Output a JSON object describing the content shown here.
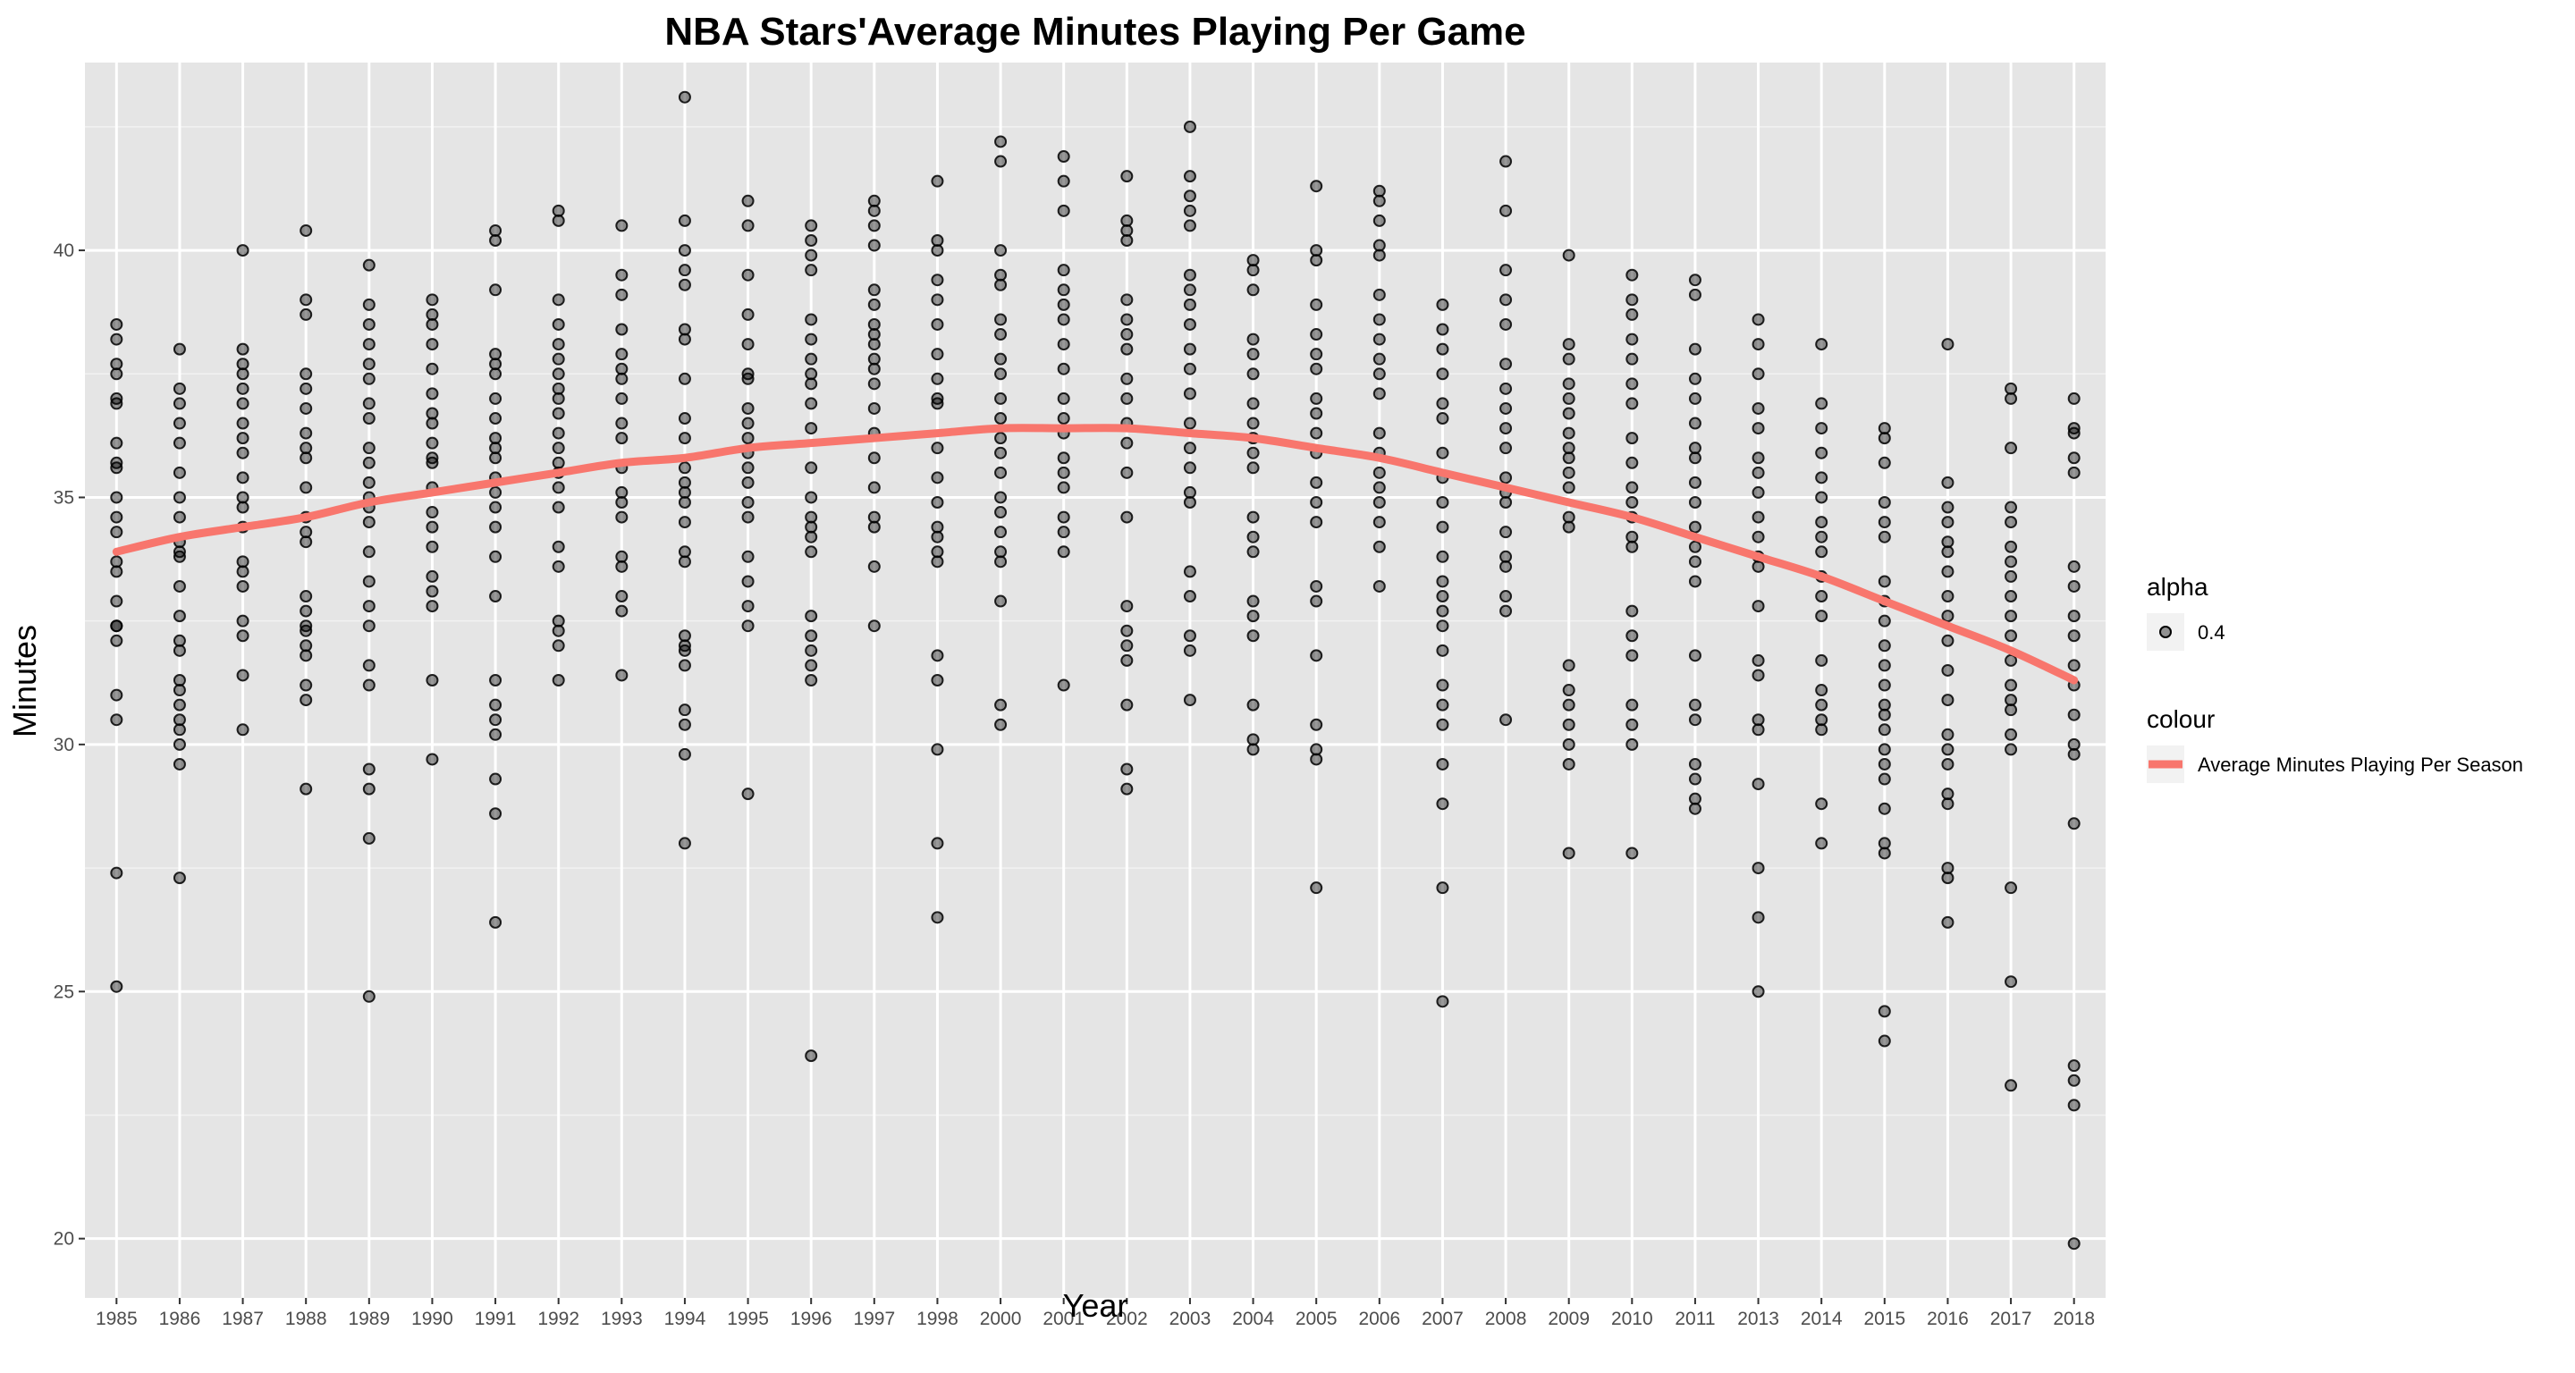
{
  "chart_data": {
    "type": "scatter",
    "title": "NBA Stars'Average Minutes Playing Per Game",
    "xlabel": "Year",
    "ylabel": "Minutes",
    "categories": [
      "1985",
      "1986",
      "1987",
      "1988",
      "1989",
      "1990",
      "1991",
      "1992",
      "1993",
      "1994",
      "1995",
      "1996",
      "1997",
      "1998",
      "2000",
      "2001",
      "2002",
      "2003",
      "2004",
      "2005",
      "2006",
      "2007",
      "2008",
      "2009",
      "2010",
      "2011",
      "2013",
      "2014",
      "2015",
      "2016",
      "2017",
      "2018"
    ],
    "yticks": [
      20,
      25,
      30,
      35,
      40
    ],
    "ylim": [
      18.8,
      43.8
    ],
    "grid": true,
    "point_color": "#000000",
    "point_alpha": 0.4,
    "line_color": "#f8766d",
    "legend": {
      "position": "right",
      "alpha_title": "alpha",
      "alpha_label": "0.4",
      "colour_title": "colour",
      "colour_label": "Average Minutes Playing Per Season"
    },
    "series": [
      {
        "kind": "points",
        "values": [
          [
            38.5,
            38.2,
            37.7,
            37.5,
            37.0,
            36.9,
            36.1,
            35.7,
            35.6,
            35.0,
            34.6,
            34.3,
            33.7,
            33.5,
            32.9,
            32.4,
            32.4,
            32.1,
            31.0,
            30.5,
            27.4,
            25.1
          ],
          [
            38.0,
            37.2,
            36.9,
            36.5,
            36.1,
            35.5,
            35.0,
            34.6,
            34.1,
            33.9,
            33.8,
            33.2,
            32.6,
            32.1,
            31.9,
            31.3,
            31.1,
            30.8,
            30.5,
            30.3,
            30.0,
            29.6,
            27.3
          ],
          [
            40.0,
            38.0,
            37.7,
            37.5,
            37.2,
            36.9,
            36.5,
            36.2,
            35.9,
            35.4,
            35.0,
            34.8,
            34.4,
            33.7,
            33.5,
            33.2,
            32.5,
            32.2,
            31.4,
            30.3
          ],
          [
            40.4,
            39.0,
            38.7,
            37.5,
            37.2,
            36.8,
            36.3,
            36.0,
            35.8,
            35.2,
            34.6,
            34.3,
            34.1,
            33.0,
            32.7,
            32.4,
            32.3,
            32.0,
            31.8,
            31.2,
            30.9,
            29.1
          ],
          [
            39.7,
            38.9,
            38.5,
            38.1,
            37.7,
            37.4,
            36.9,
            36.6,
            36.0,
            35.7,
            35.3,
            35.0,
            34.8,
            34.5,
            33.9,
            33.3,
            32.8,
            32.4,
            31.6,
            31.2,
            29.5,
            29.1,
            28.1,
            24.9
          ],
          [
            39.0,
            38.7,
            38.5,
            38.1,
            37.6,
            37.1,
            36.7,
            36.5,
            36.1,
            35.8,
            35.7,
            35.2,
            34.7,
            34.4,
            34.0,
            33.4,
            33.1,
            32.8,
            31.3,
            29.7
          ],
          [
            40.4,
            40.2,
            39.2,
            37.9,
            37.7,
            37.5,
            37.0,
            36.6,
            36.2,
            36.0,
            35.8,
            35.4,
            35.1,
            34.8,
            34.4,
            33.8,
            33.0,
            31.3,
            30.8,
            30.5,
            30.2,
            29.3,
            28.6,
            26.4
          ],
          [
            40.8,
            40.6,
            39.0,
            38.5,
            38.1,
            37.8,
            37.5,
            37.2,
            37.0,
            36.7,
            36.3,
            36.0,
            35.7,
            35.5,
            35.2,
            34.8,
            34.0,
            33.6,
            32.5,
            32.3,
            32.0,
            31.3
          ],
          [
            40.5,
            39.5,
            39.1,
            38.4,
            37.9,
            37.6,
            37.4,
            37.0,
            36.5,
            36.2,
            35.6,
            35.1,
            34.9,
            34.6,
            33.8,
            33.6,
            33.0,
            32.7,
            31.4
          ],
          [
            43.1,
            40.6,
            40.0,
            39.6,
            39.3,
            38.4,
            38.2,
            37.4,
            36.6,
            36.2,
            35.6,
            35.3,
            35.1,
            34.9,
            34.5,
            33.9,
            33.7,
            32.2,
            32.0,
            31.9,
            31.6,
            30.7,
            30.4,
            29.8,
            28.0
          ],
          [
            41.0,
            40.5,
            39.5,
            38.7,
            38.1,
            37.5,
            37.4,
            36.8,
            36.5,
            36.2,
            35.9,
            35.6,
            35.3,
            34.9,
            34.6,
            33.8,
            33.3,
            32.8,
            32.4,
            29.0
          ],
          [
            40.5,
            40.2,
            39.9,
            39.6,
            38.6,
            38.2,
            37.8,
            37.5,
            37.3,
            36.9,
            36.4,
            35.6,
            35.0,
            34.6,
            34.4,
            34.2,
            33.9,
            32.6,
            32.2,
            31.9,
            31.6,
            31.3,
            23.7
          ],
          [
            41.0,
            40.8,
            40.5,
            40.1,
            39.2,
            38.9,
            38.5,
            38.3,
            38.1,
            37.8,
            37.6,
            37.3,
            36.8,
            36.3,
            35.8,
            35.2,
            34.6,
            34.4,
            33.6,
            32.4
          ],
          [
            41.4,
            40.2,
            40.0,
            39.4,
            39.0,
            38.5,
            37.9,
            37.4,
            37.0,
            36.9,
            36.0,
            35.4,
            34.9,
            34.4,
            34.2,
            33.9,
            33.7,
            31.8,
            31.3,
            29.9,
            28.0,
            26.5
          ],
          [
            42.2,
            41.8,
            40.0,
            39.5,
            39.3,
            38.6,
            38.3,
            37.8,
            37.5,
            37.0,
            36.6,
            36.2,
            35.9,
            35.5,
            35.0,
            34.7,
            34.3,
            33.9,
            33.7,
            32.9,
            30.8,
            30.4
          ],
          [
            41.9,
            41.4,
            40.8,
            39.6,
            39.2,
            38.9,
            38.6,
            38.1,
            37.6,
            37.0,
            36.6,
            36.3,
            35.8,
            35.5,
            35.2,
            34.6,
            34.3,
            33.9,
            31.2
          ],
          [
            41.5,
            40.6,
            40.4,
            40.2,
            39.0,
            38.6,
            38.3,
            38.0,
            37.4,
            37.0,
            36.5,
            36.1,
            35.5,
            34.6,
            32.8,
            32.3,
            32.0,
            31.7,
            30.8,
            29.5,
            29.1
          ],
          [
            42.5,
            41.5,
            41.1,
            40.8,
            40.5,
            39.5,
            39.2,
            38.9,
            38.5,
            38.0,
            37.6,
            37.1,
            36.5,
            36.0,
            35.6,
            35.1,
            34.9,
            33.5,
            33.0,
            32.2,
            31.9,
            30.9
          ],
          [
            39.8,
            39.6,
            39.2,
            38.2,
            37.9,
            37.5,
            36.9,
            36.5,
            36.2,
            35.9,
            35.6,
            34.6,
            34.2,
            33.9,
            32.9,
            32.6,
            32.2,
            30.8,
            30.1,
            29.9
          ],
          [
            41.3,
            40.0,
            39.8,
            38.9,
            38.3,
            37.9,
            37.6,
            37.0,
            36.7,
            36.3,
            35.9,
            35.3,
            34.9,
            34.5,
            33.2,
            32.9,
            31.8,
            30.4,
            29.9,
            29.7,
            27.1
          ],
          [
            41.2,
            41.0,
            40.6,
            40.1,
            39.9,
            39.1,
            38.6,
            38.2,
            37.8,
            37.5,
            37.1,
            36.3,
            35.9,
            35.5,
            35.2,
            34.9,
            34.5,
            34.0,
            33.2
          ],
          [
            38.9,
            38.4,
            38.0,
            37.5,
            36.9,
            36.6,
            35.9,
            35.4,
            34.9,
            34.4,
            33.8,
            33.3,
            33.0,
            32.7,
            32.4,
            31.9,
            31.2,
            30.8,
            30.4,
            29.6,
            28.8,
            27.1,
            24.8
          ],
          [
            41.8,
            40.8,
            39.6,
            39.0,
            38.5,
            37.7,
            37.2,
            36.8,
            36.4,
            36.0,
            35.4,
            35.1,
            34.9,
            34.3,
            33.8,
            33.6,
            33.0,
            32.7,
            30.5
          ],
          [
            39.9,
            38.1,
            37.8,
            37.3,
            37.0,
            36.7,
            36.3,
            36.0,
            35.8,
            35.5,
            35.2,
            34.6,
            34.4,
            31.6,
            31.1,
            30.8,
            30.4,
            30.0,
            29.6,
            27.8
          ],
          [
            39.5,
            39.0,
            38.7,
            38.2,
            37.8,
            37.3,
            36.9,
            36.2,
            35.7,
            35.2,
            34.9,
            34.6,
            34.2,
            34.0,
            32.7,
            32.2,
            31.8,
            30.8,
            30.4,
            30.0,
            27.8
          ],
          [
            39.4,
            39.1,
            38.0,
            37.4,
            37.0,
            36.5,
            36.0,
            35.8,
            35.3,
            34.9,
            34.4,
            34.0,
            33.7,
            33.3,
            31.8,
            30.8,
            30.5,
            29.6,
            29.3,
            28.9,
            28.7
          ],
          [
            38.6,
            38.1,
            37.5,
            36.8,
            36.4,
            35.8,
            35.5,
            35.1,
            34.6,
            34.2,
            33.8,
            33.6,
            32.8,
            31.7,
            31.4,
            30.5,
            30.3,
            29.2,
            27.5,
            26.5,
            25.0
          ],
          [
            38.1,
            36.9,
            36.4,
            35.9,
            35.4,
            35.0,
            34.5,
            34.2,
            33.9,
            33.4,
            33.0,
            32.6,
            31.7,
            31.1,
            30.8,
            30.5,
            30.3,
            28.8,
            28.0
          ],
          [
            36.4,
            36.2,
            35.7,
            34.9,
            34.5,
            34.2,
            33.3,
            32.9,
            32.5,
            32.0,
            31.6,
            31.2,
            30.8,
            30.6,
            30.3,
            29.9,
            29.6,
            29.3,
            28.7,
            28.0,
            27.8,
            24.6,
            24.0
          ],
          [
            38.1,
            35.3,
            34.8,
            34.5,
            34.1,
            33.9,
            33.5,
            33.0,
            32.6,
            32.1,
            31.5,
            30.9,
            30.2,
            29.9,
            29.6,
            29.0,
            28.8,
            27.5,
            27.3,
            26.4
          ],
          [
            37.2,
            37.0,
            36.0,
            34.8,
            34.5,
            34.0,
            33.7,
            33.4,
            33.0,
            32.6,
            32.2,
            31.7,
            31.2,
            30.9,
            30.7,
            30.2,
            29.9,
            27.1,
            25.2,
            23.1
          ],
          [
            37.0,
            36.4,
            36.3,
            35.8,
            35.5,
            33.6,
            33.2,
            32.6,
            32.2,
            31.6,
            31.2,
            30.6,
            30.0,
            29.8,
            28.4,
            23.5,
            23.2,
            22.7,
            19.9
          ]
        ]
      },
      {
        "kind": "line",
        "name": "Average Minutes Playing Per Season",
        "values": [
          33.9,
          34.2,
          34.4,
          34.6,
          34.9,
          35.1,
          35.3,
          35.5,
          35.7,
          35.8,
          36.0,
          36.1,
          36.2,
          36.3,
          36.4,
          36.4,
          36.4,
          36.3,
          36.2,
          36.0,
          35.8,
          35.5,
          35.2,
          34.9,
          34.6,
          34.2,
          33.8,
          33.4,
          32.9,
          32.4,
          31.9,
          31.3
        ]
      }
    ]
  }
}
